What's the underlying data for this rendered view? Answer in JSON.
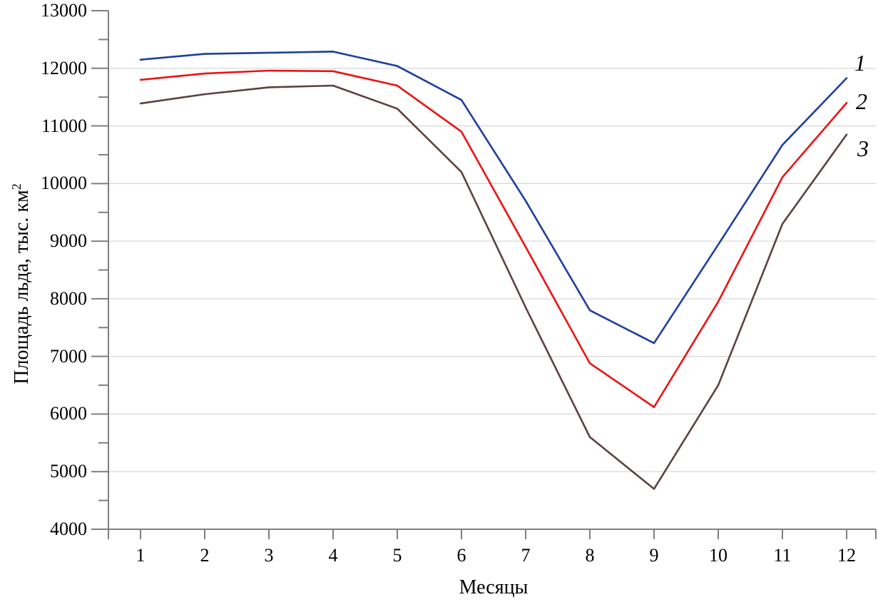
{
  "figure": {
    "background": "#ffffff",
    "text_color": "#000000",
    "axis_color": "#7f7f7f",
    "grid_color": "#d9d9d9"
  },
  "chart_data": {
    "type": "line",
    "title": "",
    "xlabel": "Месяцы",
    "ylabel": "Площадь льда, тыс. км²",
    "ylabel_base": "Площадь льда, тыс. км",
    "ylabel_superscript": "2",
    "x": [
      1,
      2,
      3,
      4,
      5,
      6,
      7,
      8,
      9,
      10,
      11,
      12
    ],
    "x_tick_labels": [
      "1",
      "2",
      "3",
      "4",
      "5",
      "6",
      "7",
      "8",
      "9",
      "10",
      "11",
      "12"
    ],
    "ylim": [
      4000,
      13000
    ],
    "y_ticks": [
      4000,
      5000,
      6000,
      7000,
      8000,
      9000,
      10000,
      11000,
      12000,
      13000
    ],
    "y_minor_step": 500,
    "grid": "horizontal-major-only",
    "legend_position": "inline-right-of-lines",
    "series": [
      {
        "name": "1",
        "color": "#1e3f9e",
        "values": [
          12150,
          12250,
          12270,
          12290,
          12040,
          11450,
          9700,
          7800,
          7230,
          8940,
          10670,
          11830
        ]
      },
      {
        "name": "2",
        "color": "#ee1111",
        "values": [
          11800,
          11910,
          11960,
          11950,
          11700,
          10900,
          8900,
          6880,
          6120,
          7950,
          10110,
          11400
        ]
      },
      {
        "name": "3",
        "color": "#5c4242",
        "values": [
          11390,
          11550,
          11670,
          11700,
          11300,
          10200,
          7850,
          5600,
          4700,
          6500,
          9300,
          10850
        ]
      }
    ]
  }
}
